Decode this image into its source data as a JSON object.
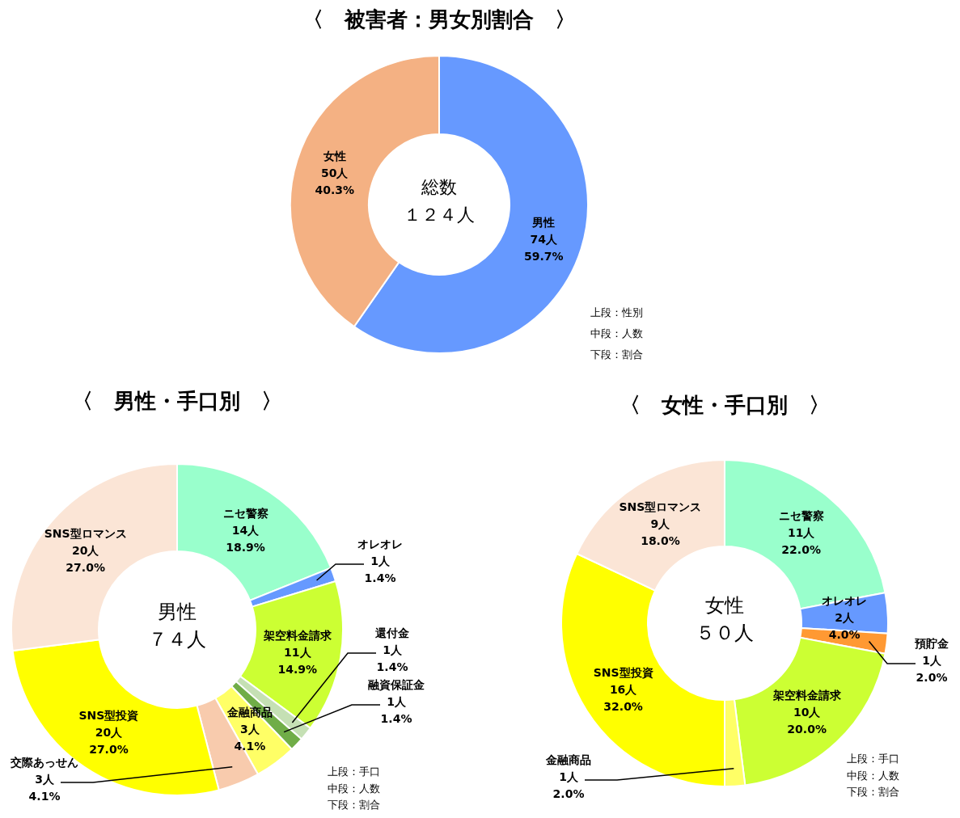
{
  "chart_data": [
    {
      "type": "donut",
      "title": "〈　被害者：男女別割合　〉",
      "categories": [
        "男性",
        "女性"
      ],
      "values": [
        74,
        50
      ],
      "colors": [
        "#6699ff",
        "#f4b183"
      ],
      "value_labels": [
        "74人\n59.7%",
        "50人\n40.3%"
      ],
      "annotations": [
        "総数",
        "１２４人",
        "上段：性別",
        "中段：人数",
        "下段：割合"
      ]
    },
    {
      "type": "donut",
      "title": "〈　男性・手口別　〉",
      "categories": [
        "ニセ警察",
        "オレオレ",
        "架空料金請求",
        "還付金",
        "融資保証金",
        "金融商品",
        "交際あっせん",
        "SNS型投資",
        "SNS型ロマンス"
      ],
      "values": [
        14,
        1,
        11,
        1,
        1,
        3,
        3,
        20,
        20
      ],
      "colors": [
        "#99ffcc",
        "#6699ff",
        "#ccff33",
        "#c5e0b4",
        "#70ad47",
        "#ffff66",
        "#f8cbad",
        "#ffff00",
        "#fbe5d6"
      ],
      "value_labels": [
        "14人\n18.9%",
        "1人\n1.4%",
        "11人\n14.9%",
        "1人\n1.4%",
        "1人\n1.4%",
        "3人\n4.1%",
        "3人\n4.1%",
        "20人\n27.0%",
        "20人\n27.0%"
      ],
      "annotations": [
        "男性",
        "７４人",
        "上段：手口",
        "中段：人数",
        "下段：割合"
      ]
    },
    {
      "type": "donut",
      "title": "〈　女性・手口別　〉",
      "categories": [
        "ニセ警察",
        "オレオレ",
        "預貯金",
        "架空料金請求",
        "金融商品",
        "SNS型投資",
        "SNS型ロマンス"
      ],
      "values": [
        11,
        2,
        1,
        10,
        1,
        16,
        9
      ],
      "colors": [
        "#99ffcc",
        "#6699ff",
        "#ff9933",
        "#ccff33",
        "#ffff66",
        "#ffff00",
        "#fbe5d6"
      ],
      "value_labels": [
        "11人\n22.0%",
        "2人\n4.0%",
        "1人\n2.0%",
        "10人\n20.0%",
        "1人\n2.0%",
        "16人\n32.0%",
        "9人\n18.0%"
      ],
      "annotations": [
        "女性",
        "５０人",
        "上段：手口",
        "中段：人数",
        "下段：割合"
      ]
    }
  ]
}
